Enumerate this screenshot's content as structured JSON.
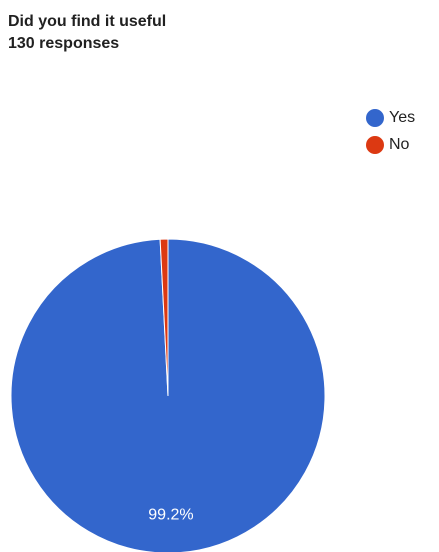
{
  "header": {
    "title": "Did you find it useful",
    "subtitle": "130 responses"
  },
  "chart_data": {
    "type": "pie",
    "title": "Did you find it useful",
    "subtitle": "130 responses",
    "legend_position": "top-right",
    "slices": [
      {
        "label": "Yes",
        "value": 99.2,
        "color": "#3366cc",
        "data_label": "99.2%"
      },
      {
        "label": "No",
        "value": 0.8,
        "color": "#dc3912",
        "data_label": ""
      }
    ]
  }
}
